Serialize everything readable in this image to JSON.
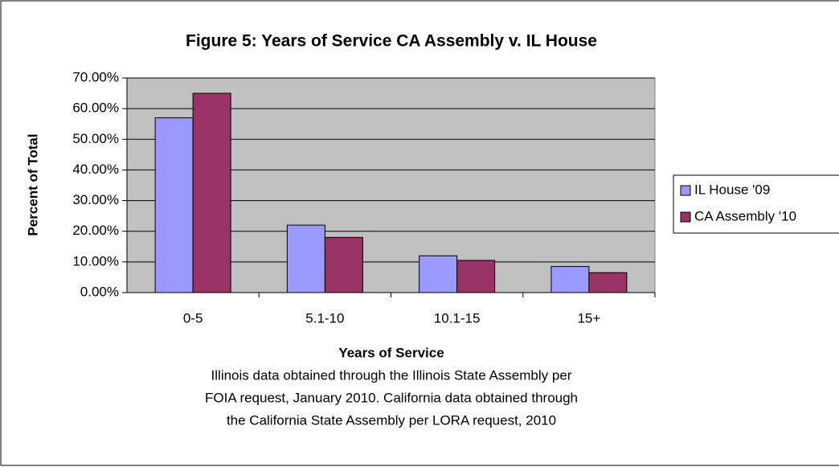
{
  "chart_data": {
    "type": "bar",
    "title": "Figure 5: Years of Service CA Assembly v. IL House",
    "x_label": "Years of Service",
    "y_label": "Percent of Total",
    "annotations": [
      "Illinois data obtained through the Illinois State Assembly per",
      "FOIA request, January 2010. California data obtained through",
      "the California State Assembly per LORA request, 2010"
    ],
    "categories": [
      "0-5",
      "5.1-10",
      "10.1-15",
      "15+"
    ],
    "series": [
      {
        "name": "IL House '09",
        "color": "#9999ff",
        "values": [
          57,
          22,
          12,
          8.5
        ]
      },
      {
        "name": "CA Assembly '10",
        "color": "#993366",
        "values": [
          65,
          18,
          10.5,
          6.5
        ]
      }
    ],
    "ylim": [
      0,
      70
    ],
    "yticks": [
      {
        "value": 0,
        "label": "0.00%"
      },
      {
        "value": 10,
        "label": "10.00%"
      },
      {
        "value": 20,
        "label": "20.00%"
      },
      {
        "value": 30,
        "label": "30.00%"
      },
      {
        "value": 40,
        "label": "40.00%"
      },
      {
        "value": 50,
        "label": "50.00%"
      },
      {
        "value": 60,
        "label": "60.00%"
      },
      {
        "value": 70,
        "label": "70.00%"
      }
    ],
    "grid": true,
    "legend": "right",
    "plot_background": "#c0c0c0"
  }
}
